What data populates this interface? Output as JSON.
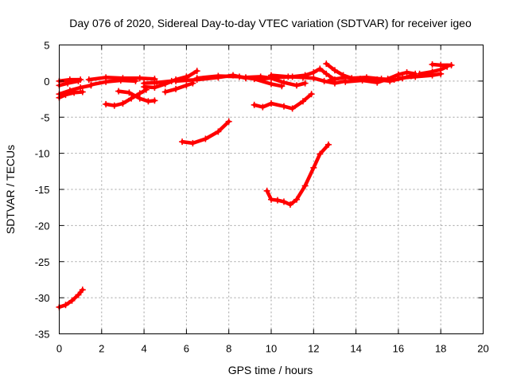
{
  "chart_data": {
    "type": "scatter",
    "title": "Day 076 of 2020, Sidereal Day-to-day VTEC variation (SDTVAR) for receiver igeo",
    "xlabel": "GPS time / hours",
    "ylabel": "SDTVAR / TECUs",
    "xlim": [
      0,
      20
    ],
    "ylim": [
      -35,
      5
    ],
    "xticks": [
      0,
      2,
      4,
      6,
      8,
      10,
      12,
      14,
      16,
      18,
      20
    ],
    "yticks": [
      5,
      0,
      -5,
      -10,
      -15,
      -20,
      -25,
      -30,
      -35
    ],
    "grid": true,
    "color": "#ff0000",
    "series": [
      {
        "name": "arc1",
        "points": [
          [
            0.0,
            -31.3
          ],
          [
            0.3,
            -31.0
          ],
          [
            0.6,
            -30.4
          ],
          [
            0.9,
            -29.6
          ],
          [
            1.1,
            -28.9
          ]
        ]
      },
      {
        "name": "arc2",
        "points": [
          [
            5.8,
            -8.4
          ],
          [
            6.3,
            -8.6
          ],
          [
            6.9,
            -8.0
          ],
          [
            7.5,
            -7.0
          ],
          [
            8.0,
            -5.6
          ]
        ]
      },
      {
        "name": "arc3",
        "points": [
          [
            9.8,
            -15.2
          ],
          [
            10.0,
            -16.4
          ],
          [
            10.3,
            -16.5
          ],
          [
            10.6,
            -16.7
          ],
          [
            10.9,
            -17.1
          ],
          [
            11.2,
            -16.4
          ],
          [
            11.6,
            -14.5
          ],
          [
            12.0,
            -12.0
          ],
          [
            12.3,
            -10.1
          ],
          [
            12.7,
            -8.8
          ]
        ]
      },
      {
        "name": "arc4",
        "points": [
          [
            9.2,
            -3.3
          ],
          [
            9.6,
            -3.6
          ],
          [
            10.0,
            -3.1
          ],
          [
            10.6,
            -3.5
          ],
          [
            11.0,
            -3.8
          ],
          [
            11.5,
            -2.8
          ],
          [
            11.9,
            -1.8
          ]
        ]
      },
      {
        "name": "arc5",
        "points": [
          [
            0.0,
            -1.8
          ],
          [
            0.5,
            -1.3
          ],
          [
            1.0,
            -0.9
          ],
          [
            1.5,
            -0.6
          ]
        ]
      },
      {
        "name": "arc6",
        "points": [
          [
            0.0,
            -2.3
          ],
          [
            0.3,
            -1.9
          ],
          [
            0.7,
            -1.6
          ],
          [
            1.1,
            -1.5
          ]
        ]
      },
      {
        "name": "arc7",
        "points": [
          [
            0.0,
            0.0
          ],
          [
            0.5,
            0.2
          ],
          [
            1.0,
            0.2
          ]
        ]
      },
      {
        "name": "arc8",
        "points": [
          [
            0.0,
            -0.6
          ],
          [
            0.4,
            -0.3
          ],
          [
            0.9,
            0.0
          ]
        ]
      },
      {
        "name": "arc9",
        "points": [
          [
            1.4,
            0.2
          ],
          [
            2.2,
            0.5
          ],
          [
            3.0,
            0.4
          ],
          [
            3.8,
            0.4
          ],
          [
            4.5,
            0.3
          ]
        ]
      },
      {
        "name": "arc10",
        "points": [
          [
            1.5,
            -0.5
          ],
          [
            2.2,
            -0.1
          ],
          [
            2.9,
            0.1
          ],
          [
            3.6,
            0.0
          ]
        ]
      },
      {
        "name": "arc11",
        "points": [
          [
            2.2,
            -3.2
          ],
          [
            2.6,
            -3.4
          ],
          [
            3.0,
            -3.1
          ],
          [
            3.4,
            -2.4
          ],
          [
            3.8,
            -1.7
          ],
          [
            4.1,
            -1.2
          ]
        ]
      },
      {
        "name": "arc12",
        "points": [
          [
            2.8,
            -1.4
          ],
          [
            3.3,
            -1.6
          ],
          [
            3.8,
            -2.4
          ],
          [
            4.2,
            -2.8
          ],
          [
            4.5,
            -2.7
          ]
        ]
      },
      {
        "name": "arc13",
        "points": [
          [
            4.0,
            -0.3
          ],
          [
            4.6,
            -0.2
          ],
          [
            5.3,
            0.0
          ],
          [
            6.0,
            0.5
          ],
          [
            6.5,
            1.4
          ]
        ]
      },
      {
        "name": "arc14",
        "points": [
          [
            4.0,
            -0.8
          ],
          [
            4.5,
            -0.9
          ],
          [
            5.0,
            -0.4
          ],
          [
            5.5,
            0.2
          ],
          [
            6.0,
            0.6
          ]
        ]
      },
      {
        "name": "arc15",
        "points": [
          [
            5.0,
            -1.5
          ],
          [
            5.5,
            -1.1
          ],
          [
            6.0,
            -0.6
          ],
          [
            6.3,
            -0.3
          ]
        ]
      },
      {
        "name": "arc16",
        "points": [
          [
            5.5,
            0.0
          ],
          [
            6.5,
            0.2
          ],
          [
            7.5,
            0.5
          ],
          [
            8.2,
            0.8
          ],
          [
            8.8,
            0.4
          ]
        ]
      },
      {
        "name": "arc17",
        "points": [
          [
            6.5,
            0.4
          ],
          [
            7.5,
            0.7
          ],
          [
            8.5,
            0.6
          ],
          [
            9.2,
            0.3
          ],
          [
            10.0,
            -0.4
          ],
          [
            10.5,
            -0.7
          ]
        ]
      },
      {
        "name": "arc18",
        "points": [
          [
            8.8,
            0.5
          ],
          [
            9.5,
            0.6
          ],
          [
            10.0,
            0.4
          ],
          [
            10.6,
            -0.2
          ],
          [
            11.2,
            -0.6
          ],
          [
            11.6,
            -0.3
          ]
        ]
      },
      {
        "name": "arc19",
        "points": [
          [
            9.5,
            0.3
          ],
          [
            10.3,
            0.5
          ],
          [
            11.0,
            0.6
          ],
          [
            11.6,
            0.8
          ],
          [
            12.0,
            1.2
          ],
          [
            12.3,
            1.7
          ],
          [
            12.6,
            1.0
          ],
          [
            13.0,
            0.2
          ]
        ]
      },
      {
        "name": "arc20",
        "points": [
          [
            10.0,
            0.8
          ],
          [
            10.8,
            0.6
          ],
          [
            11.5,
            0.5
          ],
          [
            12.0,
            0.4
          ],
          [
            12.5,
            0.0
          ],
          [
            13.0,
            -0.3
          ],
          [
            13.5,
            0.0
          ]
        ]
      },
      {
        "name": "arc21",
        "points": [
          [
            12.6,
            2.4
          ],
          [
            13.0,
            1.5
          ],
          [
            13.4,
            0.8
          ],
          [
            13.8,
            0.4
          ],
          [
            14.5,
            0.5
          ],
          [
            15.2,
            0.3
          ],
          [
            15.8,
            0.2
          ]
        ]
      },
      {
        "name": "arc22",
        "points": [
          [
            12.8,
            0.2
          ],
          [
            13.5,
            0.5
          ],
          [
            14.2,
            0.3
          ],
          [
            15.0,
            0.2
          ],
          [
            15.6,
            0.0
          ],
          [
            16.2,
            0.4
          ],
          [
            16.6,
            0.7
          ]
        ]
      },
      {
        "name": "arc23",
        "points": [
          [
            13.5,
            -0.1
          ],
          [
            14.3,
            0.1
          ],
          [
            15.0,
            -0.2
          ],
          [
            15.5,
            0.3
          ],
          [
            16.0,
            0.9
          ],
          [
            16.4,
            1.2
          ],
          [
            16.8,
            1.0
          ]
        ]
      },
      {
        "name": "arc24",
        "points": [
          [
            16.0,
            0.4
          ],
          [
            16.8,
            0.6
          ],
          [
            17.6,
            0.8
          ],
          [
            18.0,
            1.0
          ]
        ]
      },
      {
        "name": "arc25",
        "points": [
          [
            17.0,
            1.0
          ],
          [
            17.6,
            1.3
          ],
          [
            18.0,
            1.6
          ],
          [
            18.3,
            2.0
          ]
        ]
      },
      {
        "name": "arc26",
        "points": [
          [
            17.6,
            2.3
          ],
          [
            18.0,
            2.2
          ],
          [
            18.5,
            2.2
          ]
        ]
      }
    ]
  }
}
